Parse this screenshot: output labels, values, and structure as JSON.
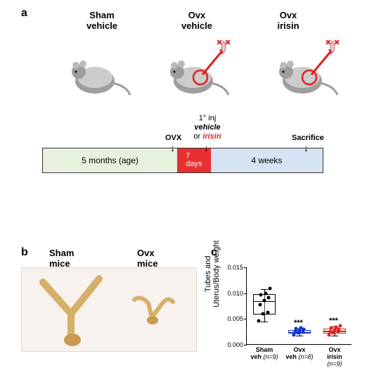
{
  "panel_labels": {
    "a": "a",
    "b": "b",
    "c": "c"
  },
  "groups": {
    "g1": "Sham\nvehicle",
    "g2": "Ovx\nvehicle",
    "g3": "Ovx\nirisin"
  },
  "timeline": {
    "ovx_label": "OVX",
    "inj_label_1": "1° inj",
    "inj_label_2": "vehicle",
    "inj_label_3": "or",
    "inj_label_4": "irisin",
    "sac_label": "Sacrifice",
    "seg1": {
      "text": "5 months (age)",
      "color": "#e7f1de",
      "width_pct": 48
    },
    "seg2": {
      "text": "7\ndays",
      "color": "#e83030",
      "width_pct": 12,
      "text_color": "#ffffff"
    },
    "seg3": {
      "text": "4 weeks",
      "color": "#d5e3f2",
      "width_pct": 40
    }
  },
  "photo": {
    "sham_label": "Sham\nmice",
    "ovx_label": "Ovx\nmice"
  },
  "chart": {
    "ylabel": "Tubes and\nUterus/Body weight",
    "ymax": 0.015,
    "yticks": [
      0.0,
      0.005,
      0.01,
      0.015
    ],
    "ytick_labels": [
      "0.000",
      "0.005",
      "0.010",
      "0.015"
    ],
    "series": [
      {
        "name": "Sham veh",
        "x_label_1": "Sham",
        "x_label_2": "veh",
        "n_label": "(n=9)",
        "color": "#000000",
        "box": {
          "q1": 0.0058,
          "median": 0.0085,
          "q3": 0.0098,
          "low": 0.0045,
          "high": 0.0108
        },
        "points": [
          0.0045,
          0.0058,
          0.0062,
          0.0076,
          0.0085,
          0.009,
          0.0095,
          0.0098,
          0.0108
        ],
        "sig": ""
      },
      {
        "name": "Ovx veh",
        "x_label_1": "Ovx",
        "x_label_2": "veh",
        "n_label": "(n=8)",
        "color": "#1030d0",
        "box": {
          "q1": 0.0022,
          "median": 0.0025,
          "q3": 0.0028,
          "low": 0.0018,
          "high": 0.0032
        },
        "points": [
          0.0018,
          0.0022,
          0.0023,
          0.0025,
          0.0026,
          0.0028,
          0.003,
          0.0032
        ],
        "sig": "***"
      },
      {
        "name": "Ovx irisin",
        "x_label_1": "Ovx",
        "x_label_2": "irisin",
        "n_label": "(n=9)",
        "color": "#e02020",
        "box": {
          "q1": 0.0022,
          "median": 0.0027,
          "q3": 0.0032,
          "low": 0.0018,
          "high": 0.0036
        },
        "points": [
          0.0018,
          0.0022,
          0.0024,
          0.0025,
          0.0027,
          0.0029,
          0.0031,
          0.0033,
          0.0036
        ],
        "sig": "***"
      }
    ]
  }
}
